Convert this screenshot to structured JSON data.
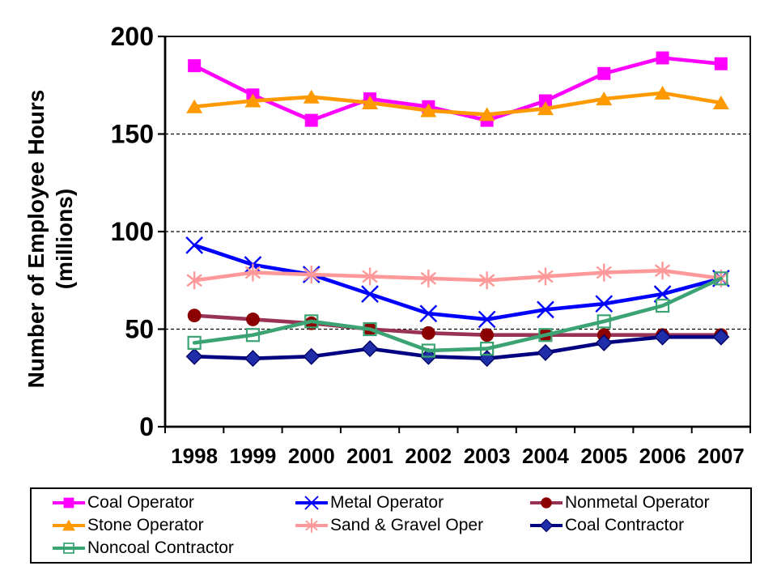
{
  "chart_data": {
    "type": "line",
    "title": "",
    "ylabel_line1": "Number of Employee Hours",
    "ylabel_line2": "(millions)",
    "xlabel": "",
    "categories": [
      "1998",
      "1999",
      "2000",
      "2001",
      "2002",
      "2003",
      "2004",
      "2005",
      "2006",
      "2007"
    ],
    "ylim": [
      0,
      200
    ],
    "yticks": [
      0,
      50,
      100,
      150,
      200
    ],
    "grid": "horizontal-dashed",
    "legend_position": "bottom",
    "axis_color": "#000000",
    "series": [
      {
        "name": "Coal Operator",
        "color": "#FF00FF",
        "marker": "square",
        "values": [
          185,
          170,
          157,
          168,
          164,
          157,
          167,
          181,
          189,
          186
        ]
      },
      {
        "name": "Metal Operator",
        "color": "#0000FF",
        "marker": "x",
        "values": [
          93,
          83,
          78,
          68,
          58,
          55,
          60,
          63,
          68,
          76
        ]
      },
      {
        "name": "Nonmetal Operator",
        "color": "#993355",
        "marker": "circle",
        "marker_color": "#8B0000",
        "values": [
          57,
          55,
          53,
          50,
          48,
          47,
          47,
          47,
          47,
          47
        ]
      },
      {
        "name": "Stone Operator",
        "color": "#FF9900",
        "marker": "triangle",
        "values": [
          164,
          167,
          169,
          166,
          162,
          160,
          163,
          168,
          171,
          166
        ]
      },
      {
        "name": "Sand & Gravel Oper",
        "color": "#FF9999",
        "marker": "star",
        "values": [
          75,
          79,
          78,
          77,
          76,
          75,
          77,
          79,
          80,
          76
        ]
      },
      {
        "name": "Coal Contractor",
        "color": "#000080",
        "marker": "diamond",
        "marker_color": "#1F2DA8",
        "values": [
          36,
          35,
          36,
          40,
          36,
          35,
          38,
          43,
          46,
          46
        ]
      },
      {
        "name": "Noncoal Contractor",
        "color": "#3CA373",
        "marker": "square-open",
        "values": [
          43,
          47,
          54,
          50,
          39,
          40,
          47,
          54,
          62,
          76
        ]
      }
    ]
  }
}
